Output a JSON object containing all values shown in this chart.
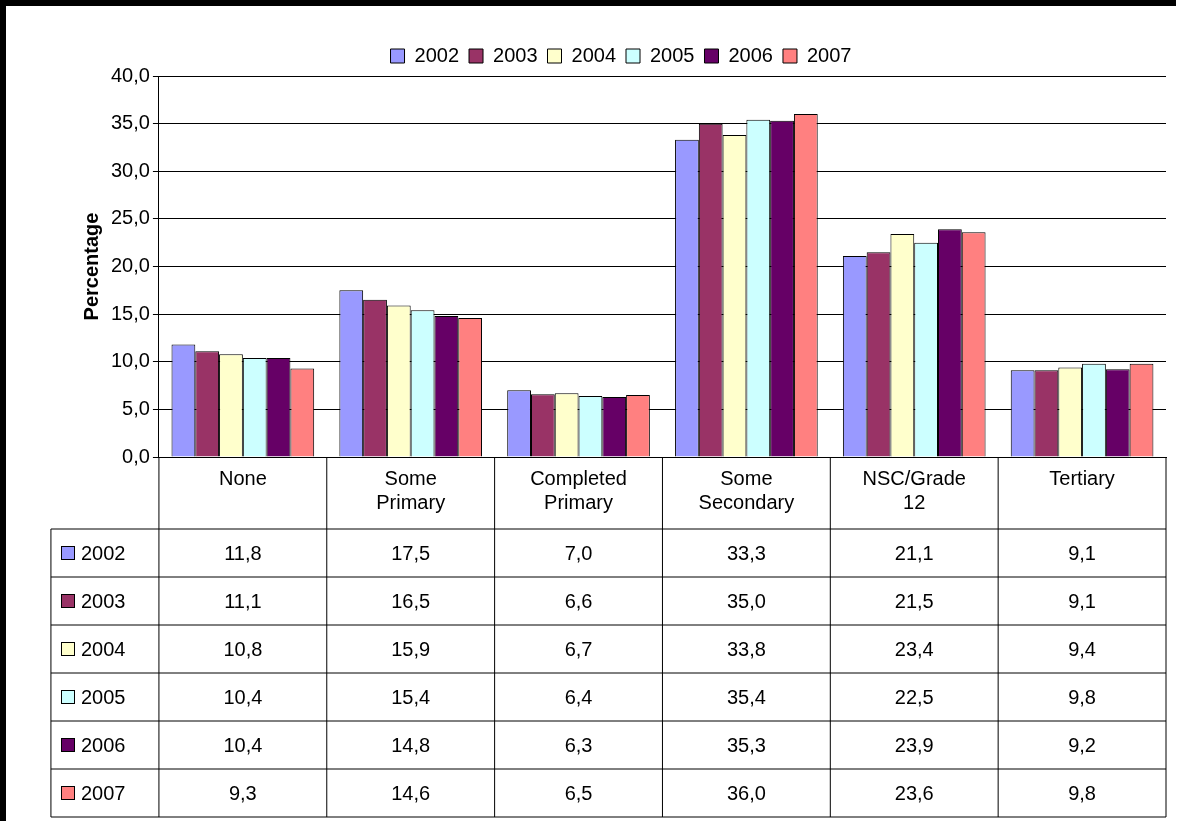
{
  "chart_data": {
    "type": "bar",
    "ylabel": "Percentage",
    "categories": [
      "None",
      "Some Primary",
      "Completed Primary",
      "Some Secondary",
      "NSC/Grade 12",
      "Tertiary"
    ],
    "series": [
      {
        "name": "2002",
        "color": "#9999ff",
        "values": [
          11.8,
          17.5,
          7.0,
          33.3,
          21.1,
          9.1
        ],
        "value_labels": [
          "11,8",
          "17,5",
          "7,0",
          "33,3",
          "21,1",
          "9,1"
        ]
      },
      {
        "name": "2003",
        "color": "#993366",
        "values": [
          11.1,
          16.5,
          6.6,
          35.0,
          21.5,
          9.1
        ],
        "value_labels": [
          "11,1",
          "16,5",
          "6,6",
          "35,0",
          "21,5",
          "9,1"
        ]
      },
      {
        "name": "2004",
        "color": "#ffffcc",
        "values": [
          10.8,
          15.9,
          6.7,
          33.8,
          23.4,
          9.4
        ],
        "value_labels": [
          "10,8",
          "15,9",
          "6,7",
          "33,8",
          "23,4",
          "9,4"
        ]
      },
      {
        "name": "2005",
        "color": "#ccffff",
        "values": [
          10.4,
          15.4,
          6.4,
          35.4,
          22.5,
          9.8
        ],
        "value_labels": [
          "10,4",
          "15,4",
          "6,4",
          "35,4",
          "22,5",
          "9,8"
        ]
      },
      {
        "name": "2006",
        "color": "#660066",
        "values": [
          10.4,
          14.8,
          6.3,
          35.3,
          23.9,
          9.2
        ],
        "value_labels": [
          "10,4",
          "14,8",
          "6,3",
          "35,3",
          "23,9",
          "9,2"
        ]
      },
      {
        "name": "2007",
        "color": "#ff8080",
        "values": [
          9.3,
          14.6,
          6.5,
          36.0,
          23.6,
          9.8
        ],
        "value_labels": [
          "9,3",
          "14,6",
          "6,5",
          "36,0",
          "23,6",
          "9,8"
        ]
      }
    ],
    "ylim": [
      0,
      40
    ],
    "yticks": [
      {
        "value": 0,
        "label": "0,0"
      },
      {
        "value": 5,
        "label": "5,0"
      },
      {
        "value": 10,
        "label": "10,0"
      },
      {
        "value": 15,
        "label": "15,0"
      },
      {
        "value": 20,
        "label": "20,0"
      },
      {
        "value": 25,
        "label": "25,0"
      },
      {
        "value": 30,
        "label": "30,0"
      },
      {
        "value": 35,
        "label": "35,0"
      },
      {
        "value": 40,
        "label": "40,0"
      }
    ],
    "grid": "y",
    "legend": "top"
  }
}
